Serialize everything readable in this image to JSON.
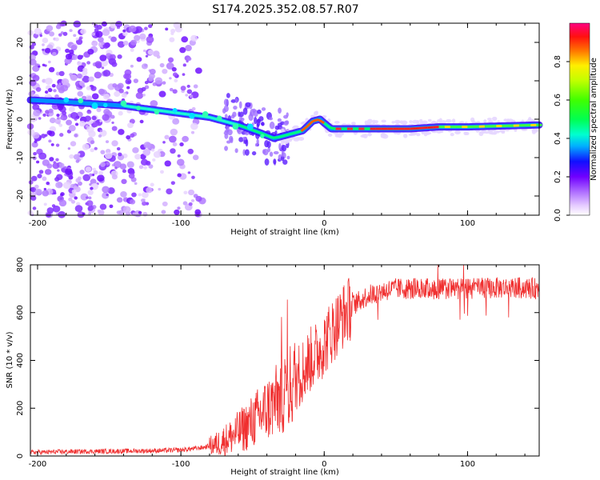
{
  "title": "S174.2025.352.08.57.R07",
  "chart_data": [
    {
      "type": "heatmap",
      "name": "spectrogram",
      "xlabel": "Height of straight line (km)",
      "ylabel": "Frequency (Hz)",
      "xlim": [
        -205,
        150
      ],
      "ylim": [
        -25,
        25
      ],
      "xticks": [
        -200,
        -100,
        0,
        100
      ],
      "yticks": [
        -20,
        -10,
        0,
        10,
        20
      ],
      "ridge": {
        "x": [
          -205,
          -180,
          -160,
          -140,
          -120,
          -100,
          -80,
          -60,
          -45,
          -35,
          -25,
          -15,
          -8,
          -3,
          0,
          5,
          10,
          20,
          40,
          60,
          80,
          100,
          120,
          150
        ],
        "y": [
          5,
          4.5,
          4,
          3.5,
          2.5,
          1.5,
          0.5,
          -1.5,
          -3.5,
          -5,
          -4,
          -3,
          -0.5,
          0,
          -1,
          -2.5,
          -2.5,
          -2.5,
          -2.5,
          -2.5,
          -2,
          -2,
          -1.8,
          -1.5
        ]
      },
      "colorbar": {
        "label": "Normalized spectral amplitude",
        "range": [
          0,
          1
        ],
        "ticks": [
          0.0,
          0.2,
          0.4,
          0.6,
          0.8
        ]
      }
    },
    {
      "type": "line",
      "name": "snr",
      "xlabel": "Height of straight line (km)",
      "ylabel": "SNR (10 * v/v)",
      "xlim": [
        -205,
        150
      ],
      "ylim": [
        0,
        800
      ],
      "xticks": [
        -200,
        -100,
        0,
        100
      ],
      "yticks": [
        0,
        200,
        400,
        600,
        800
      ],
      "series": [
        {
          "name": "SNR",
          "color": "#f03030",
          "trend": {
            "x": [
              -205,
              -180,
              -150,
              -120,
              -100,
              -85,
              -75,
              -65,
              -55,
              -45,
              -35,
              -25,
              -20,
              -15,
              -10,
              -5,
              0,
              5,
              10,
              15,
              20,
              25,
              30,
              40,
              50,
              70,
              100,
              130,
              150
            ],
            "y": [
              15,
              18,
              20,
              22,
              25,
              35,
              50,
              80,
              120,
              170,
              220,
              280,
              320,
              360,
              400,
              430,
              470,
              520,
              560,
              600,
              630,
              650,
              670,
              690,
              700,
              700,
              700,
              705,
              700
            ]
          }
        }
      ]
    }
  ]
}
